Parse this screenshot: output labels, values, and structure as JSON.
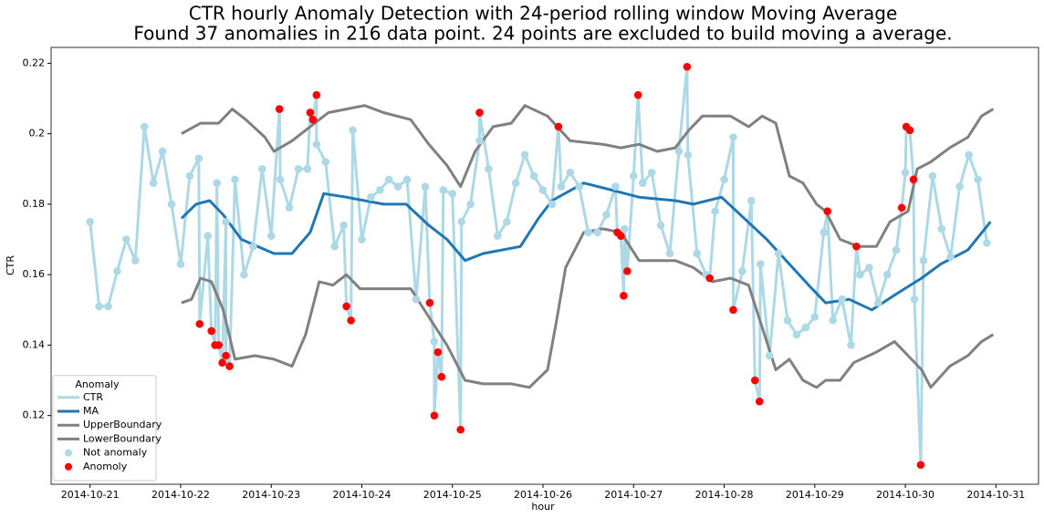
{
  "chart_data": {
    "type": "line",
    "title": "CTR hourly Anomaly Detection with 24-period rolling window Moving Average",
    "subtitle": "Found 37 anomalies in 216 data point. 24 points are excluded to build moving a average.",
    "x_label": "hour",
    "y_label": "CTR",
    "xlim": [
      -0.43,
      10.47
    ],
    "ylim": [
      0.1005,
      0.2245
    ],
    "xticks": [
      {
        "value": 0,
        "label": "2014-10-21"
      },
      {
        "value": 1,
        "label": "2014-10-22"
      },
      {
        "value": 2,
        "label": "2014-10-23"
      },
      {
        "value": 3,
        "label": "2014-10-24"
      },
      {
        "value": 4,
        "label": "2014-10-25"
      },
      {
        "value": 5,
        "label": "2014-10-26"
      },
      {
        "value": 6,
        "label": "2014-10-27"
      },
      {
        "value": 7,
        "label": "2014-10-28"
      },
      {
        "value": 8,
        "label": "2014-10-29"
      },
      {
        "value": 9,
        "label": "2014-10-30"
      },
      {
        "value": 10,
        "label": "2014-10-31"
      }
    ],
    "yticks": [
      0.12,
      0.14,
      0.16,
      0.18,
      0.2,
      0.22
    ],
    "legend": {
      "title": "Anomaly",
      "loc": "lower left"
    },
    "series": [
      {
        "name": "CTR",
        "type": "line",
        "color": "#add8e6",
        "x": [
          0,
          0.1,
          0.2,
          0.3,
          0.4,
          0.5,
          0.6,
          0.7,
          0.8,
          0.9,
          1.0,
          1.1,
          1.2,
          1.21,
          1.3,
          1.34,
          1.38,
          1.4,
          1.42,
          1.46,
          1.5,
          1.5,
          1.54,
          1.6,
          1.7,
          1.8,
          1.9,
          2.0,
          2.09,
          2.1,
          2.2,
          2.3,
          2.4,
          2.43,
          2.46,
          2.5,
          2.5,
          2.6,
          2.7,
          2.8,
          2.83,
          2.88,
          2.9,
          3.0,
          3.1,
          3.2,
          3.3,
          3.4,
          3.5,
          3.6,
          3.7,
          3.75,
          3.8,
          3.8,
          3.84,
          3.88,
          3.9,
          4.0,
          4.09,
          4.1,
          4.2,
          4.3,
          4.3,
          4.4,
          4.5,
          4.6,
          4.7,
          4.8,
          4.9,
          5.0,
          5.1,
          5.17,
          5.2,
          5.3,
          5.4,
          5.5,
          5.6,
          5.7,
          5.8,
          5.82,
          5.86,
          5.89,
          5.9,
          5.93,
          6.0,
          6.05,
          6.1,
          6.2,
          6.3,
          6.4,
          6.5,
          6.59,
          6.6,
          6.7,
          6.8,
          6.84,
          6.9,
          7.0,
          7.1,
          7.1,
          7.2,
          7.3,
          7.34,
          7.39,
          7.4,
          7.5,
          7.6,
          7.7,
          7.8,
          7.9,
          8.0,
          8.1,
          8.14,
          8.2,
          8.3,
          8.4,
          8.46,
          8.5,
          8.6,
          8.7,
          8.8,
          8.9,
          8.96,
          9.0,
          9.01,
          9.05,
          9.09,
          9.1,
          9.17,
          9.2,
          9.3,
          9.4,
          9.5,
          9.6,
          9.7,
          9.8,
          9.9
        ],
        "values": [
          0.175,
          0.151,
          0.151,
          0.161,
          0.17,
          0.164,
          0.202,
          0.186,
          0.195,
          0.18,
          0.163,
          0.188,
          0.193,
          0.146,
          0.171,
          0.144,
          0.14,
          0.186,
          0.14,
          0.135,
          0.175,
          0.137,
          0.134,
          0.187,
          0.16,
          0.168,
          0.19,
          0.171,
          0.207,
          0.187,
          0.179,
          0.19,
          0.19,
          0.206,
          0.204,
          0.211,
          0.197,
          0.192,
          0.168,
          0.174,
          0.151,
          0.147,
          0.201,
          0.17,
          0.182,
          0.184,
          0.187,
          0.185,
          0.187,
          0.153,
          0.185,
          0.152,
          0.141,
          0.12,
          0.138,
          0.131,
          0.184,
          0.183,
          0.116,
          0.175,
          0.18,
          0.198,
          0.206,
          0.19,
          0.171,
          0.175,
          0.186,
          0.194,
          0.188,
          0.184,
          0.18,
          0.202,
          0.185,
          0.189,
          0.185,
          0.172,
          0.172,
          0.177,
          0.185,
          0.172,
          0.171,
          0.154,
          0.173,
          0.161,
          0.188,
          0.211,
          0.186,
          0.189,
          0.174,
          0.166,
          0.195,
          0.219,
          0.194,
          0.166,
          0.16,
          0.159,
          0.178,
          0.187,
          0.199,
          0.15,
          0.161,
          0.181,
          0.13,
          0.124,
          0.163,
          0.137,
          0.166,
          0.147,
          0.143,
          0.145,
          0.148,
          0.172,
          0.178,
          0.147,
          0.153,
          0.14,
          0.168,
          0.16,
          0.162,
          0.152,
          0.16,
          0.167,
          0.179,
          0.189,
          0.202,
          0.201,
          0.187,
          0.153,
          0.106,
          0.164,
          0.188,
          0.173,
          0.165,
          0.185,
          0.194,
          0.187,
          0.169
        ]
      },
      {
        "name": "MA",
        "type": "line",
        "color": "#1f77b4",
        "x": [
          1.01,
          1.17,
          1.32,
          1.47,
          1.67,
          2.03,
          2.23,
          2.43,
          2.58,
          2.83,
          3.24,
          3.49,
          3.74,
          3.94,
          4.14,
          4.34,
          4.75,
          4.95,
          5.1,
          5.45,
          5.76,
          6.06,
          6.46,
          6.66,
          6.97,
          7.47,
          7.72,
          7.97,
          8.12,
          8.38,
          8.63,
          8.93,
          9.18,
          9.39,
          9.69,
          9.94
        ],
        "values": [
          0.176,
          0.18,
          0.181,
          0.177,
          0.17,
          0.166,
          0.166,
          0.172,
          0.183,
          0.182,
          0.18,
          0.18,
          0.174,
          0.17,
          0.164,
          0.166,
          0.168,
          0.176,
          0.181,
          0.186,
          0.184,
          0.182,
          0.181,
          0.18,
          0.182,
          0.17,
          0.163,
          0.156,
          0.152,
          0.153,
          0.15,
          0.155,
          0.159,
          0.163,
          0.167,
          0.175
        ]
      },
      {
        "name": "UpperBoundary",
        "type": "line",
        "color": "#808080",
        "x": [
          1.01,
          1.22,
          1.42,
          1.57,
          1.72,
          1.93,
          2.03,
          2.23,
          2.43,
          2.63,
          2.83,
          3.03,
          3.24,
          3.54,
          3.74,
          3.94,
          4.09,
          4.25,
          4.45,
          4.65,
          4.8,
          5.05,
          5.3,
          5.66,
          5.86,
          6.06,
          6.26,
          6.46,
          6.61,
          6.76,
          7.07,
          7.27,
          7.42,
          7.57,
          7.72,
          7.87,
          8.02,
          8.12,
          8.28,
          8.48,
          8.68,
          8.83,
          9.03,
          9.13,
          9.28,
          9.49,
          9.69,
          9.84,
          9.97
        ],
        "values": [
          0.2,
          0.203,
          0.203,
          0.207,
          0.204,
          0.199,
          0.195,
          0.198,
          0.202,
          0.206,
          0.207,
          0.208,
          0.206,
          0.204,
          0.197,
          0.191,
          0.185,
          0.195,
          0.202,
          0.203,
          0.208,
          0.205,
          0.198,
          0.197,
          0.196,
          0.197,
          0.195,
          0.196,
          0.201,
          0.205,
          0.205,
          0.202,
          0.205,
          0.203,
          0.188,
          0.186,
          0.18,
          0.178,
          0.17,
          0.168,
          0.168,
          0.175,
          0.178,
          0.19,
          0.192,
          0.196,
          0.199,
          0.205,
          0.207
        ]
      },
      {
        "name": "LowerBoundary",
        "type": "line",
        "color": "#808080",
        "x": [
          1.01,
          1.12,
          1.22,
          1.34,
          1.47,
          1.6,
          1.82,
          2.03,
          2.23,
          2.38,
          2.53,
          2.68,
          2.83,
          2.98,
          3.24,
          3.54,
          3.74,
          3.94,
          4.14,
          4.34,
          4.65,
          4.85,
          5.05,
          5.15,
          5.25,
          5.45,
          5.66,
          5.86,
          6.06,
          6.46,
          6.66,
          6.87,
          7.07,
          7.27,
          7.42,
          7.57,
          7.72,
          7.87,
          8.02,
          8.12,
          8.28,
          8.43,
          8.68,
          8.88,
          9.03,
          9.18,
          9.28,
          9.49,
          9.69,
          9.84,
          9.97
        ],
        "values": [
          0.152,
          0.153,
          0.159,
          0.158,
          0.15,
          0.136,
          0.137,
          0.136,
          0.134,
          0.143,
          0.158,
          0.157,
          0.16,
          0.156,
          0.156,
          0.156,
          0.148,
          0.14,
          0.13,
          0.129,
          0.129,
          0.128,
          0.133,
          0.147,
          0.162,
          0.172,
          0.173,
          0.172,
          0.164,
          0.164,
          0.162,
          0.158,
          0.159,
          0.157,
          0.145,
          0.133,
          0.136,
          0.13,
          0.128,
          0.13,
          0.13,
          0.135,
          0.138,
          0.141,
          0.137,
          0.133,
          0.128,
          0.134,
          0.137,
          0.141,
          0.143
        ]
      },
      {
        "name": "Not anomaly",
        "type": "scatter",
        "color": "#add8e6",
        "x": [
          0,
          0.1,
          0.2,
          0.3,
          0.4,
          0.5,
          0.6,
          0.7,
          0.8,
          0.9,
          1.0,
          1.1,
          1.2,
          1.3,
          1.4,
          1.5,
          1.6,
          1.7,
          1.8,
          1.9,
          2.0,
          2.1,
          2.2,
          2.3,
          2.4,
          2.5,
          2.6,
          2.7,
          2.8,
          2.9,
          3.0,
          3.1,
          3.2,
          3.3,
          3.4,
          3.5,
          3.6,
          3.7,
          3.8,
          3.9,
          4.0,
          4.1,
          4.2,
          4.3,
          4.4,
          4.5,
          4.6,
          4.7,
          4.8,
          4.9,
          5.0,
          5.1,
          5.2,
          5.3,
          5.4,
          5.5,
          5.6,
          5.7,
          5.8,
          5.9,
          6.0,
          6.1,
          6.2,
          6.3,
          6.4,
          6.5,
          6.6,
          6.7,
          6.8,
          6.9,
          7.0,
          7.1,
          7.2,
          7.3,
          7.4,
          7.5,
          7.6,
          7.7,
          7.8,
          7.9,
          8.0,
          8.1,
          8.2,
          8.3,
          8.4,
          8.5,
          8.6,
          8.7,
          8.8,
          8.9,
          9.0,
          9.1,
          9.2,
          9.3,
          9.4,
          9.5,
          9.6,
          9.7,
          9.8,
          9.9
        ],
        "values": [
          0.175,
          0.151,
          0.151,
          0.161,
          0.17,
          0.164,
          0.202,
          0.186,
          0.195,
          0.18,
          0.163,
          0.188,
          0.193,
          0.171,
          0.186,
          0.175,
          0.187,
          0.16,
          0.168,
          0.19,
          0.171,
          0.187,
          0.179,
          0.19,
          0.19,
          0.197,
          0.192,
          0.168,
          0.174,
          0.201,
          0.17,
          0.182,
          0.184,
          0.187,
          0.185,
          0.187,
          0.153,
          0.185,
          0.141,
          0.184,
          0.183,
          0.175,
          0.18,
          0.198,
          0.19,
          0.171,
          0.175,
          0.186,
          0.194,
          0.188,
          0.184,
          0.18,
          0.185,
          0.189,
          0.185,
          0.172,
          0.172,
          0.177,
          0.185,
          0.173,
          0.188,
          0.186,
          0.189,
          0.174,
          0.166,
          0.195,
          0.194,
          0.166,
          0.16,
          0.178,
          0.187,
          0.199,
          0.161,
          0.181,
          0.163,
          0.137,
          0.166,
          0.147,
          0.143,
          0.145,
          0.148,
          0.172,
          0.147,
          0.153,
          0.14,
          0.16,
          0.162,
          0.152,
          0.16,
          0.167,
          0.189,
          0.153,
          0.164,
          0.188,
          0.173,
          0.165,
          0.185,
          0.194,
          0.187,
          0.169
        ]
      },
      {
        "name": "Anomoly",
        "type": "scatter",
        "color": "#ff0000",
        "x": [
          1.21,
          1.34,
          1.38,
          1.42,
          1.46,
          1.5,
          1.54,
          2.09,
          2.43,
          2.46,
          2.5,
          2.83,
          2.88,
          3.75,
          3.8,
          3.84,
          3.88,
          4.09,
          4.3,
          5.17,
          5.82,
          5.86,
          5.89,
          5.93,
          6.05,
          6.59,
          6.84,
          7.1,
          7.34,
          7.39,
          8.14,
          8.46,
          8.96,
          9.01,
          9.05,
          9.09,
          9.17
        ],
        "values": [
          0.146,
          0.144,
          0.14,
          0.14,
          0.135,
          0.137,
          0.134,
          0.207,
          0.206,
          0.204,
          0.211,
          0.151,
          0.147,
          0.152,
          0.12,
          0.138,
          0.131,
          0.116,
          0.206,
          0.202,
          0.172,
          0.171,
          0.154,
          0.161,
          0.211,
          0.219,
          0.159,
          0.15,
          0.13,
          0.124,
          0.178,
          0.168,
          0.179,
          0.202,
          0.201,
          0.187,
          0.106
        ]
      }
    ]
  }
}
